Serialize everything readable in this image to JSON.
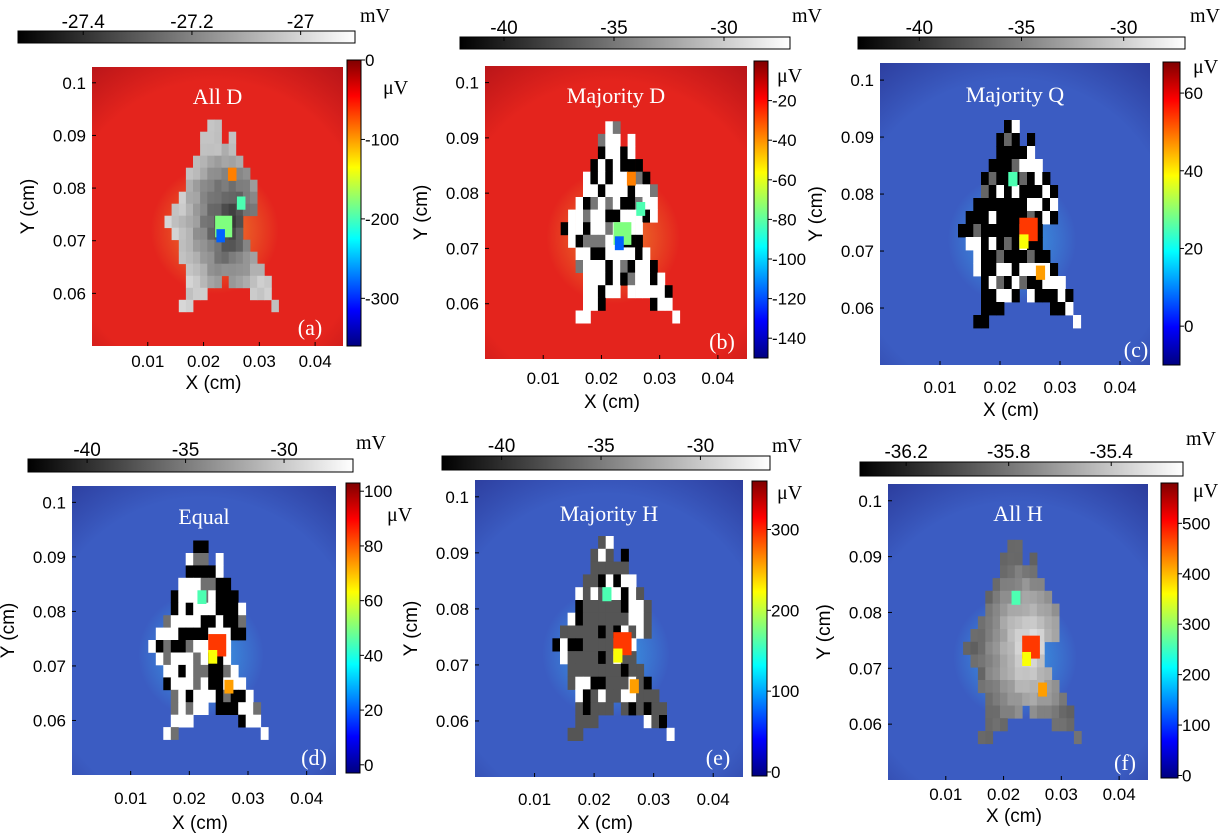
{
  "chart_data": [
    {
      "type": "heatmap",
      "panel_letter": "(a)",
      "title": "All D",
      "xlabel": "X (cm)",
      "ylabel": "Y (cm)",
      "x_ticks": [
        "0.01",
        "0.02",
        "0.03",
        "0.04"
      ],
      "y_ticks": [
        "0.1",
        "0.09",
        "0.08",
        "0.07",
        "0.06"
      ],
      "xlim": [
        0.0,
        0.045
      ],
      "ylim": [
        0.05,
        0.103
      ],
      "grayscale_colorbar": {
        "unit": "mV",
        "ticks": [
          "-27.4",
          "-27.2",
          "-27"
        ],
        "range": [
          -27.52,
          -26.9
        ]
      },
      "color_colorbar": {
        "unit": "μV",
        "ticks": [
          "0",
          "-100",
          "-200",
          "-300"
        ],
        "range": [
          -360,
          0
        ]
      },
      "background_field": "red",
      "tissue_shading": "dark",
      "tissue_style": "smooth"
    },
    {
      "type": "heatmap",
      "panel_letter": "(b)",
      "title": "Majority D",
      "xlabel": "X (cm)",
      "ylabel": "Y (cm)",
      "x_ticks": [
        "0.01",
        "0.02",
        "0.03",
        "0.04"
      ],
      "y_ticks": [
        "0.1",
        "0.09",
        "0.08",
        "0.07",
        "0.06"
      ],
      "xlim": [
        0.0,
        0.045
      ],
      "ylim": [
        0.05,
        0.103
      ],
      "grayscale_colorbar": {
        "unit": "mV",
        "ticks": [
          "-40",
          "-35",
          "-30"
        ],
        "range": [
          -42,
          -27
        ]
      },
      "color_colorbar": {
        "unit": "μV",
        "ticks": [
          "-20",
          "-40",
          "-60",
          "-80",
          "-100",
          "-120",
          "-140"
        ],
        "range": [
          -150,
          0
        ]
      },
      "background_field": "red",
      "tissue_shading": "mostly-white",
      "tissue_style": "pixelated"
    },
    {
      "type": "heatmap",
      "panel_letter": "(c)",
      "title": "Majority Q",
      "xlabel": "X (cm)",
      "ylabel": "Y (cm)",
      "x_ticks": [
        "0.01",
        "0.02",
        "0.03",
        "0.04"
      ],
      "y_ticks": [
        "0.1",
        "0.09",
        "0.08",
        "0.07",
        "0.06"
      ],
      "xlim": [
        0.0,
        0.045
      ],
      "ylim": [
        0.05,
        0.103
      ],
      "grayscale_colorbar": {
        "unit": "mV",
        "ticks": [
          "-40",
          "-35",
          "-30"
        ],
        "range": [
          -43,
          -27
        ]
      },
      "color_colorbar": {
        "unit": "μV",
        "ticks": [
          "60",
          "40",
          "20",
          "0"
        ],
        "range": [
          -10,
          68
        ]
      },
      "background_field": "blue",
      "tissue_shading": "mostly-black",
      "tissue_style": "pixelated"
    },
    {
      "type": "heatmap",
      "panel_letter": "(d)",
      "title": "Equal",
      "xlabel": "X (cm)",
      "ylabel": "Y (cm)",
      "x_ticks": [
        "0.01",
        "0.02",
        "0.03",
        "0.04"
      ],
      "y_ticks": [
        "0.1",
        "0.09",
        "0.08",
        "0.07",
        "0.06"
      ],
      "xlim": [
        0.0,
        0.045
      ],
      "ylim": [
        0.05,
        0.103
      ],
      "grayscale_colorbar": {
        "unit": "mV",
        "ticks": [
          "-40",
          "-35",
          "-30"
        ],
        "range": [
          -43,
          -26.5
        ]
      },
      "color_colorbar": {
        "unit": "μV",
        "ticks": [
          "100",
          "80",
          "60",
          "40",
          "20",
          "0"
        ],
        "range": [
          -3,
          103
        ]
      },
      "background_field": "blue",
      "tissue_shading": "mixed",
      "tissue_style": "pixelated"
    },
    {
      "type": "heatmap",
      "panel_letter": "(e)",
      "title": "Majority H",
      "xlabel": "X (cm)",
      "ylabel": "Y (cm)",
      "x_ticks": [
        "0.01",
        "0.02",
        "0.03",
        "0.04"
      ],
      "y_ticks": [
        "0.1",
        "0.09",
        "0.08",
        "0.07",
        "0.06"
      ],
      "xlim": [
        0.0,
        0.045
      ],
      "ylim": [
        0.05,
        0.103
      ],
      "grayscale_colorbar": {
        "unit": "mV",
        "ticks": [
          "-40",
          "-35",
          "-30"
        ],
        "range": [
          -43,
          -26.5
        ]
      },
      "color_colorbar": {
        "unit": "μV",
        "ticks": [
          "300",
          "200",
          "100",
          "0"
        ],
        "range": [
          -5,
          360
        ]
      },
      "background_field": "blue",
      "tissue_shading": "mostly-gray",
      "tissue_style": "pixelated"
    },
    {
      "type": "heatmap",
      "panel_letter": "(f)",
      "title": "All H",
      "xlabel": "X (cm)",
      "ylabel": "Y (cm)",
      "x_ticks": [
        "0.01",
        "0.02",
        "0.03",
        "0.04"
      ],
      "y_ticks": [
        "0.1",
        "0.09",
        "0.08",
        "0.07",
        "0.06"
      ],
      "xlim": [
        0.0,
        0.045
      ],
      "ylim": [
        0.05,
        0.103
      ],
      "grayscale_colorbar": {
        "unit": "mV",
        "ticks": [
          "-36.2",
          "-35.8",
          "-35.4"
        ],
        "range": [
          -36.38,
          -35.12
        ]
      },
      "color_colorbar": {
        "unit": "μV",
        "ticks": [
          "500",
          "400",
          "300",
          "200",
          "100",
          "0"
        ],
        "range": [
          -5,
          580
        ]
      },
      "background_field": "blue",
      "tissue_shading": "light",
      "tissue_style": "smooth"
    }
  ],
  "colors": {
    "jet": [
      "#00007f",
      "#0000ff",
      "#007fff",
      "#00ffff",
      "#7fff7f",
      "#ffff00",
      "#ff7f00",
      "#ff0000",
      "#7f0000"
    ],
    "red_field_center": "#ee8a2e",
    "red_field": "#e4241d",
    "red_field_edge": "#b31318",
    "blue_field_center": "#3aa7ec",
    "blue_field": "#3b5cc2",
    "blue_field_edge": "#2b3a9a"
  }
}
